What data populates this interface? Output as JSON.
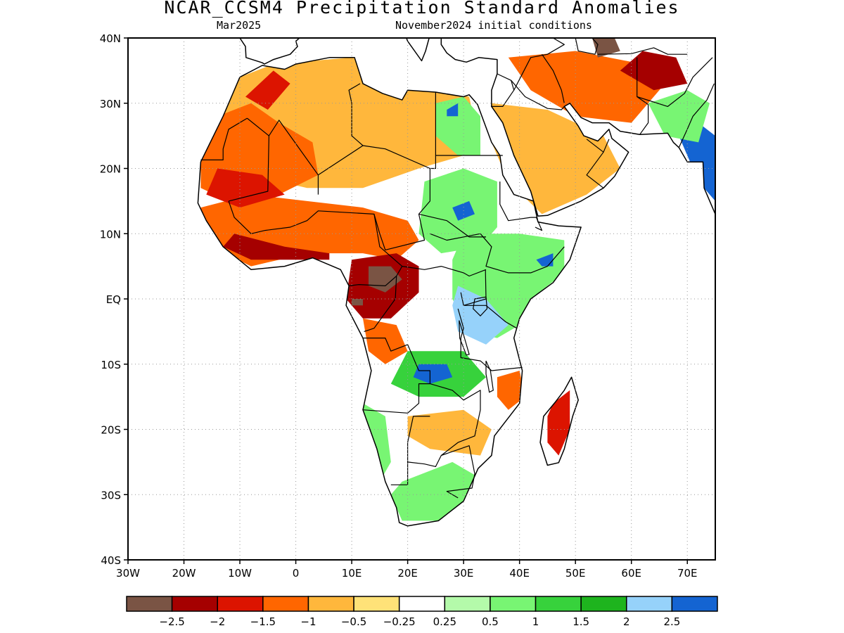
{
  "title": "NCAR_CCSM4 Precipitation Standard Anomalies",
  "valid_month": "Mar2025",
  "initial_conditions": "November2024 initial conditions",
  "map": {
    "lon_range": [
      -30,
      75
    ],
    "lat_range": [
      -40,
      40
    ],
    "lat_ticks": [
      {
        "value": 40,
        "label": "40N"
      },
      {
        "value": 30,
        "label": "30N"
      },
      {
        "value": 20,
        "label": "20N"
      },
      {
        "value": 10,
        "label": "10N"
      },
      {
        "value": 0,
        "label": "EQ"
      },
      {
        "value": -10,
        "label": "10S"
      },
      {
        "value": -20,
        "label": "20S"
      },
      {
        "value": -30,
        "label": "30S"
      },
      {
        "value": -40,
        "label": "40S"
      }
    ],
    "lon_ticks": [
      {
        "value": -30,
        "label": "30W"
      },
      {
        "value": -20,
        "label": "20W"
      },
      {
        "value": -10,
        "label": "10W"
      },
      {
        "value": 0,
        "label": "0"
      },
      {
        "value": 10,
        "label": "10E"
      },
      {
        "value": 20,
        "label": "20E"
      },
      {
        "value": 30,
        "label": "30E"
      },
      {
        "value": 40,
        "label": "40E"
      },
      {
        "value": 50,
        "label": "50E"
      },
      {
        "value": 60,
        "label": "60E"
      },
      {
        "value": 70,
        "label": "70E"
      }
    ],
    "grid": "dotted"
  },
  "colorbar": {
    "colors": [
      "#7a5444",
      "#a50000",
      "#dc1400",
      "#ff6600",
      "#ffb73c",
      "#ffe278",
      "#ffffff",
      "#b4faaa",
      "#78f573",
      "#37d23c",
      "#1eb41e",
      "#96d2fa",
      "#1464d2"
    ],
    "labels": [
      "−2.5",
      "−2",
      "−1.5",
      "−1",
      "−0.5",
      "−0.25",
      "0.25",
      "0.5",
      "1",
      "1.5",
      "2",
      "2.5"
    ]
  },
  "regions": [
    {
      "name": "central-sahara",
      "level": "-0.5",
      "pts": [
        [
          -13,
          33
        ],
        [
          -4,
          36
        ],
        [
          10,
          37
        ],
        [
          25,
          32
        ],
        [
          31,
          31
        ],
        [
          32,
          27
        ],
        [
          30,
          22
        ],
        [
          22,
          20
        ],
        [
          12,
          17
        ],
        [
          2,
          17
        ],
        [
          -8,
          19
        ],
        [
          -16,
          20
        ],
        [
          -17,
          26
        ]
      ]
    },
    {
      "name": "western-sahara",
      "level": "-1",
      "pts": [
        [
          -17,
          27
        ],
        [
          -8,
          30
        ],
        [
          -3,
          27
        ],
        [
          3,
          24
        ],
        [
          4,
          19
        ],
        [
          -3,
          16
        ],
        [
          -12,
          15
        ],
        [
          -17,
          17
        ]
      ]
    },
    {
      "name": "northwest-africa",
      "level": "-1.5",
      "pts": [
        [
          -9,
          31
        ],
        [
          -4,
          35
        ],
        [
          -1,
          33
        ],
        [
          -5,
          29
        ]
      ]
    },
    {
      "name": "sahel-band",
      "level": "-1",
      "pts": [
        [
          -17,
          14
        ],
        [
          -8,
          16
        ],
        [
          2,
          15
        ],
        [
          12,
          14
        ],
        [
          20,
          12
        ],
        [
          22,
          9
        ],
        [
          18,
          6
        ],
        [
          12,
          7
        ],
        [
          2,
          7
        ],
        [
          -8,
          5
        ],
        [
          -15,
          8
        ]
      ]
    },
    {
      "name": "guinea-coast",
      "level": "-2",
      "pts": [
        [
          -13,
          8
        ],
        [
          -8,
          6
        ],
        [
          0,
          6
        ],
        [
          6,
          6
        ],
        [
          6,
          7
        ],
        [
          -2,
          8
        ],
        [
          -11,
          10
        ]
      ]
    },
    {
      "name": "mali-dry",
      "level": "-1.5",
      "pts": [
        [
          -14,
          20
        ],
        [
          -6,
          19
        ],
        [
          -2,
          16
        ],
        [
          -10,
          14
        ],
        [
          -16,
          16
        ]
      ]
    },
    {
      "name": "congo-basin-dry",
      "level": "-2",
      "pts": [
        [
          10,
          6
        ],
        [
          18,
          7
        ],
        [
          22,
          5
        ],
        [
          22,
          1
        ],
        [
          17,
          -3
        ],
        [
          12,
          -3
        ],
        [
          9,
          0
        ]
      ]
    },
    {
      "name": "congo-core",
      "level": "-2.5",
      "pts": [
        [
          13,
          5
        ],
        [
          17,
          5
        ],
        [
          19,
          3
        ],
        [
          16,
          1
        ],
        [
          13,
          2
        ]
      ]
    },
    {
      "name": "gabon-core",
      "level": "-2.5",
      "pts": [
        [
          10,
          0
        ],
        [
          12,
          0
        ],
        [
          12,
          -1
        ],
        [
          10,
          -1
        ]
      ]
    },
    {
      "name": "angola-coast",
      "level": "-1",
      "pts": [
        [
          12,
          -3
        ],
        [
          18,
          -4
        ],
        [
          20,
          -8
        ],
        [
          16,
          -10
        ],
        [
          13,
          -8
        ]
      ]
    },
    {
      "name": "sudan-wet",
      "level": "1",
      "pts": [
        [
          23,
          18
        ],
        [
          30,
          20
        ],
        [
          36,
          18
        ],
        [
          36,
          11
        ],
        [
          33,
          8
        ],
        [
          26,
          7
        ],
        [
          22,
          10
        ]
      ]
    },
    {
      "name": "sudan-core",
      "level": "2.5",
      "pts": [
        [
          28,
          14
        ],
        [
          31,
          15
        ],
        [
          32,
          13
        ],
        [
          29,
          12
        ]
      ]
    },
    {
      "name": "east-africa-wet",
      "level": "1",
      "pts": [
        [
          30,
          10
        ],
        [
          40,
          10
        ],
        [
          48,
          9
        ],
        [
          48,
          4
        ],
        [
          42,
          0
        ],
        [
          40,
          -4
        ],
        [
          36,
          -6
        ],
        [
          31,
          -5
        ],
        [
          28,
          0
        ],
        [
          28,
          6
        ]
      ]
    },
    {
      "name": "lake-victoria-region",
      "level": "2",
      "pts": [
        [
          29,
          2
        ],
        [
          34,
          0
        ],
        [
          38,
          -4
        ],
        [
          34,
          -7
        ],
        [
          29,
          -5
        ],
        [
          28,
          -1
        ]
      ]
    },
    {
      "name": "somalia-core",
      "level": "2.5",
      "pts": [
        [
          43,
          6
        ],
        [
          46,
          7
        ],
        [
          46,
          5
        ],
        [
          44,
          5
        ]
      ]
    },
    {
      "name": "zambia-wet",
      "level": "1.5",
      "pts": [
        [
          20,
          -8
        ],
        [
          30,
          -8
        ],
        [
          34,
          -12
        ],
        [
          30,
          -15
        ],
        [
          22,
          -15
        ],
        [
          17,
          -13
        ]
      ]
    },
    {
      "name": "zambia-core",
      "level": "2.5",
      "pts": [
        [
          22,
          -10
        ],
        [
          27,
          -10
        ],
        [
          28,
          -12
        ],
        [
          24,
          -13
        ],
        [
          21,
          -12
        ]
      ]
    },
    {
      "name": "namibia-wet",
      "level": "1",
      "pts": [
        [
          12,
          -16
        ],
        [
          16,
          -18
        ],
        [
          17,
          -25
        ],
        [
          15,
          -28
        ],
        [
          12,
          -22
        ]
      ]
    },
    {
      "name": "southern-africa-dry",
      "level": "-0.5",
      "pts": [
        [
          20,
          -18
        ],
        [
          30,
          -17
        ],
        [
          35,
          -20
        ],
        [
          33,
          -24
        ],
        [
          24,
          -23
        ],
        [
          20,
          -21
        ]
      ]
    },
    {
      "name": "south-africa-wet",
      "level": "1",
      "pts": [
        [
          19,
          -28
        ],
        [
          28,
          -25
        ],
        [
          32,
          -27
        ],
        [
          31,
          -31
        ],
        [
          26,
          -34
        ],
        [
          19,
          -34
        ],
        [
          17,
          -30
        ]
      ]
    },
    {
      "name": "mozambique-dry",
      "level": "-1",
      "pts": [
        [
          36,
          -12
        ],
        [
          40,
          -11
        ],
        [
          41,
          -15
        ],
        [
          38,
          -17
        ],
        [
          36,
          -15
        ]
      ]
    },
    {
      "name": "madagascar-dry",
      "level": "-1.5",
      "pts": [
        [
          46,
          -16
        ],
        [
          49,
          -14
        ],
        [
          49,
          -20
        ],
        [
          47,
          -24
        ],
        [
          45,
          -22
        ],
        [
          45,
          -18
        ]
      ]
    },
    {
      "name": "egypt-wet",
      "level": "1",
      "pts": [
        [
          25,
          30
        ],
        [
          30,
          31
        ],
        [
          33,
          28
        ],
        [
          33,
          22
        ],
        [
          29,
          22
        ],
        [
          25,
          25
        ]
      ]
    },
    {
      "name": "egypt-core",
      "level": "2.5",
      "pts": [
        [
          27,
          29
        ],
        [
          29,
          30
        ],
        [
          29,
          28
        ],
        [
          27,
          28
        ]
      ]
    },
    {
      "name": "arabia-dry",
      "level": "-0.5",
      "pts": [
        [
          35,
          30
        ],
        [
          45,
          29
        ],
        [
          55,
          25
        ],
        [
          58,
          20
        ],
        [
          52,
          16
        ],
        [
          44,
          13
        ],
        [
          38,
          18
        ],
        [
          35,
          24
        ]
      ]
    },
    {
      "name": "iran-dry",
      "level": "-1",
      "pts": [
        [
          38,
          37
        ],
        [
          50,
          38
        ],
        [
          62,
          36
        ],
        [
          66,
          33
        ],
        [
          60,
          27
        ],
        [
          50,
          28
        ],
        [
          42,
          32
        ]
      ]
    },
    {
      "name": "iran-core",
      "level": "-2",
      "pts": [
        [
          58,
          35
        ],
        [
          62,
          38
        ],
        [
          68,
          37
        ],
        [
          70,
          33
        ],
        [
          64,
          32
        ]
      ]
    },
    {
      "name": "caspian-core",
      "level": "-2.5",
      "pts": [
        [
          53,
          40
        ],
        [
          57,
          40
        ],
        [
          58,
          38
        ],
        [
          54,
          37
        ]
      ]
    },
    {
      "name": "india-wet",
      "level": "2.5",
      "pts": [
        [
          68,
          26
        ],
        [
          72,
          27
        ],
        [
          75,
          25
        ],
        [
          75,
          15
        ],
        [
          72,
          18
        ],
        [
          70,
          22
        ]
      ]
    },
    {
      "name": "pakistan-wet",
      "level": "1",
      "pts": [
        [
          63,
          30
        ],
        [
          70,
          32
        ],
        [
          74,
          30
        ],
        [
          72,
          24
        ],
        [
          66,
          25
        ]
      ]
    }
  ]
}
